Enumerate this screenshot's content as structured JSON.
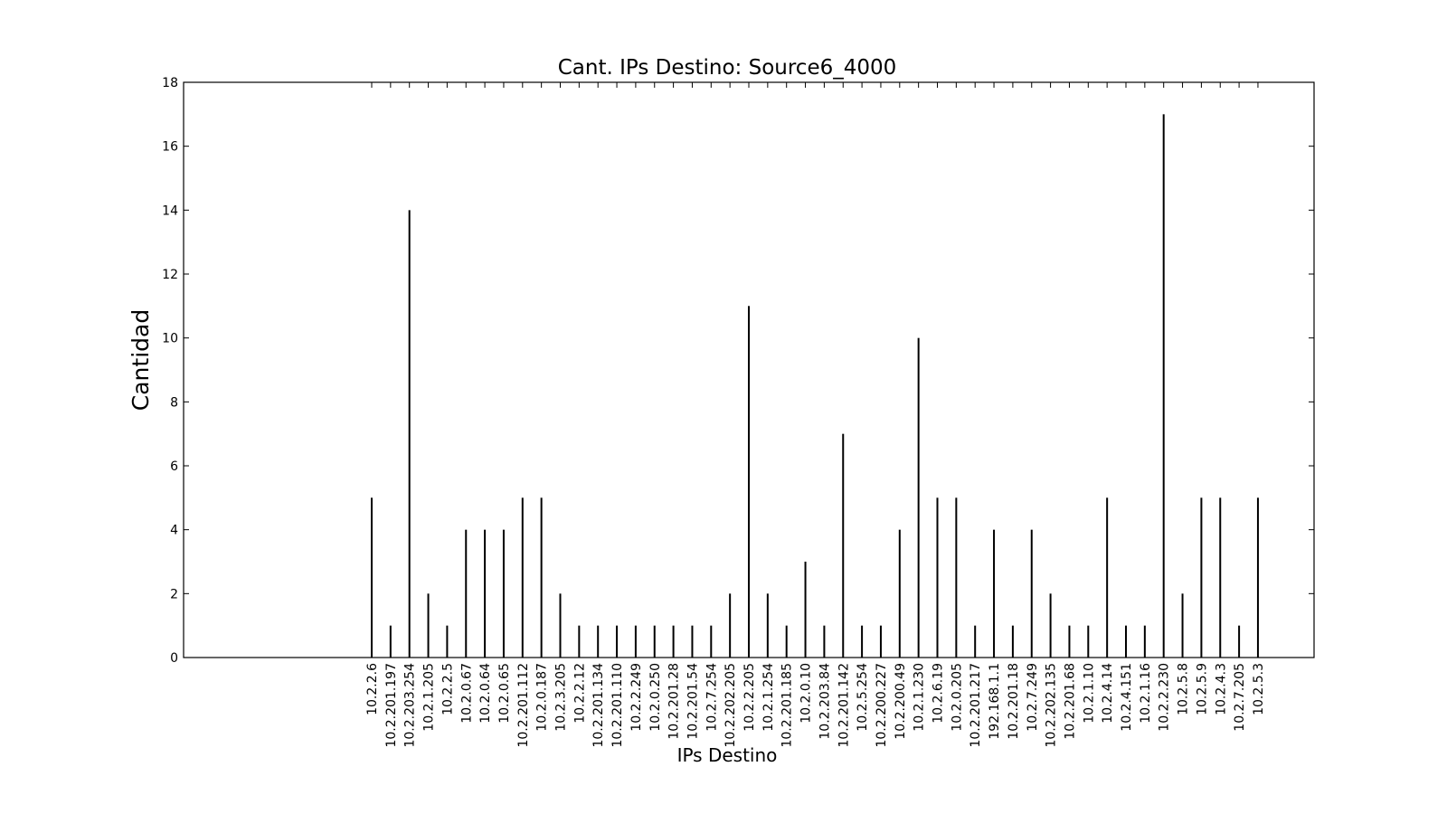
{
  "chart_data": {
    "type": "bar",
    "title": "Cant. IPs Destino: Source6_4000",
    "xlabel": "IPs Destino",
    "ylabel": "Cantidad",
    "ylim": [
      0,
      18
    ],
    "yticks": [
      "0",
      "2",
      "4",
      "6",
      "8",
      "10",
      "12",
      "14",
      "16",
      "18"
    ],
    "grid": false,
    "categories": [
      "10.2.2.6",
      "10.2.201.197",
      "10.2.203.254",
      "10.2.1.205",
      "10.2.2.5",
      "10.2.0.67",
      "10.2.0.64",
      "10.2.0.65",
      "10.2.201.112",
      "10.2.0.187",
      "10.2.3.205",
      "10.2.2.12",
      "10.2.201.134",
      "10.2.201.110",
      "10.2.2.249",
      "10.2.0.250",
      "10.2.201.28",
      "10.2.201.54",
      "10.2.7.254",
      "10.2.202.205",
      "10.2.2.205",
      "10.2.1.254",
      "10.2.201.185",
      "10.2.0.10",
      "10.2.203.84",
      "10.2.201.142",
      "10.2.5.254",
      "10.2.200.227",
      "10.2.200.49",
      "10.2.1.230",
      "10.2.6.19",
      "10.2.0.205",
      "10.2.201.217",
      "192.168.1.1",
      "10.2.201.18",
      "10.2.7.249",
      "10.2.202.135",
      "10.2.201.68",
      "10.2.1.10",
      "10.2.4.14",
      "10.2.4.151",
      "10.2.1.16",
      "10.2.2.230",
      "10.2.5.8",
      "10.2.5.9",
      "10.2.4.3",
      "10.2.7.205",
      "10.2.5.3"
    ],
    "values": [
      5,
      1,
      14,
      2,
      1,
      4,
      4,
      4,
      5,
      5,
      2,
      1,
      1,
      1,
      1,
      1,
      1,
      1,
      1,
      2,
      11,
      2,
      1,
      3,
      1,
      7,
      1,
      1,
      4,
      10,
      5,
      5,
      1,
      4,
      1,
      4,
      2,
      1,
      1,
      5,
      1,
      1,
      17,
      2,
      5,
      5,
      1,
      5
    ],
    "bar_color": "#000000"
  }
}
